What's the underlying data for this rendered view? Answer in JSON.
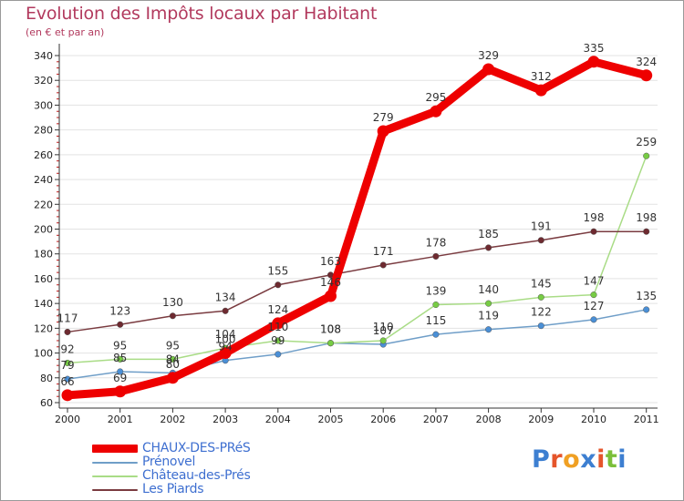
{
  "title": "Evolution des Impôts locaux par Habitant",
  "subtitle": "(en € et par an)",
  "brand": "Proxiti",
  "brand_letter_colors": [
    "#3d7fd1",
    "#e5552b",
    "#f0a023",
    "#3d7fd1",
    "#e5552b",
    "#7bbf3a",
    "#3d7fd1"
  ],
  "chart_data": {
    "type": "line",
    "title": "Evolution des Impôts locaux par Habitant",
    "subtitle": "(en € et par an)",
    "xlabel": "",
    "ylabel": "",
    "categories": [
      "2000",
      "2001",
      "2002",
      "2003",
      "2004",
      "2005",
      "2006",
      "2007",
      "2008",
      "2009",
      "2010",
      "2011"
    ],
    "ylim": [
      60,
      340
    ],
    "yticks": [
      60,
      80,
      100,
      120,
      140,
      160,
      180,
      200,
      220,
      240,
      260,
      280,
      300,
      320,
      340
    ],
    "grid": true,
    "legend_position": "bottom-left",
    "series": [
      {
        "name": "CHAUX-DES-PRéS",
        "color": "#ee0000",
        "marker": "#ee0000",
        "width": "thick",
        "values": [
          66,
          69,
          80,
          100,
          124,
          146,
          279,
          295,
          329,
          312,
          335,
          324
        ]
      },
      {
        "name": "Prénovel",
        "color": "#6f9ec8",
        "marker": "#4a8fd6",
        "width": "thin",
        "values": [
          79,
          85,
          84,
          94,
          99,
          108,
          107,
          115,
          119,
          122,
          127,
          135
        ]
      },
      {
        "name": "Château-des-Prés",
        "color": "#a9dc86",
        "marker": "#77cc44",
        "width": "thin",
        "values": [
          92,
          95,
          95,
          104,
          110,
          108,
          110,
          139,
          140,
          145,
          147,
          259
        ]
      },
      {
        "name": "Les Piards",
        "color": "#7a3b40",
        "marker": "#6e2a30",
        "width": "thin",
        "values": [
          117,
          123,
          130,
          134,
          155,
          163,
          171,
          178,
          185,
          191,
          198,
          198
        ]
      }
    ]
  }
}
